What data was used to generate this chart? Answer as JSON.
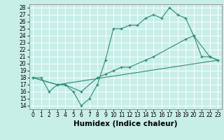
{
  "line1_x": [
    0,
    1,
    2,
    3,
    4,
    5,
    6,
    7,
    8,
    9,
    10,
    11,
    12,
    13,
    14,
    15,
    16,
    17,
    18,
    19,
    20,
    21,
    22,
    23
  ],
  "line1_y": [
    18,
    18,
    16,
    17,
    17,
    16,
    14,
    15,
    17,
    20.5,
    25,
    25,
    25.5,
    25.5,
    26.5,
    27,
    26.5,
    28,
    27,
    26.5,
    24,
    21,
    21,
    20.5
  ],
  "line2_x": [
    0,
    3,
    4,
    6,
    8,
    9,
    10,
    11,
    12,
    14,
    15,
    19,
    20,
    22,
    23
  ],
  "line2_y": [
    18,
    17,
    17,
    16,
    18,
    18.5,
    19,
    19.5,
    19.5,
    20.5,
    21,
    23.5,
    24,
    21,
    20.5
  ],
  "line3_x": [
    0,
    3,
    23
  ],
  "line3_y": [
    18,
    17,
    20.5
  ],
  "color": "#2e8b74",
  "bg_color": "#c8eee8",
  "grid_color": "#ffffff",
  "xlabel": "Humidex (Indice chaleur)",
  "xlim": [
    -0.5,
    23.5
  ],
  "ylim": [
    13.5,
    28.5
  ],
  "xticks": [
    0,
    1,
    2,
    3,
    4,
    5,
    6,
    7,
    8,
    9,
    10,
    11,
    12,
    13,
    14,
    15,
    16,
    17,
    18,
    19,
    20,
    21,
    22,
    23
  ],
  "yticks": [
    14,
    15,
    16,
    17,
    18,
    19,
    20,
    21,
    22,
    23,
    24,
    25,
    26,
    27,
    28
  ],
  "tick_fontsize": 5.5,
  "xlabel_fontsize": 7.5
}
